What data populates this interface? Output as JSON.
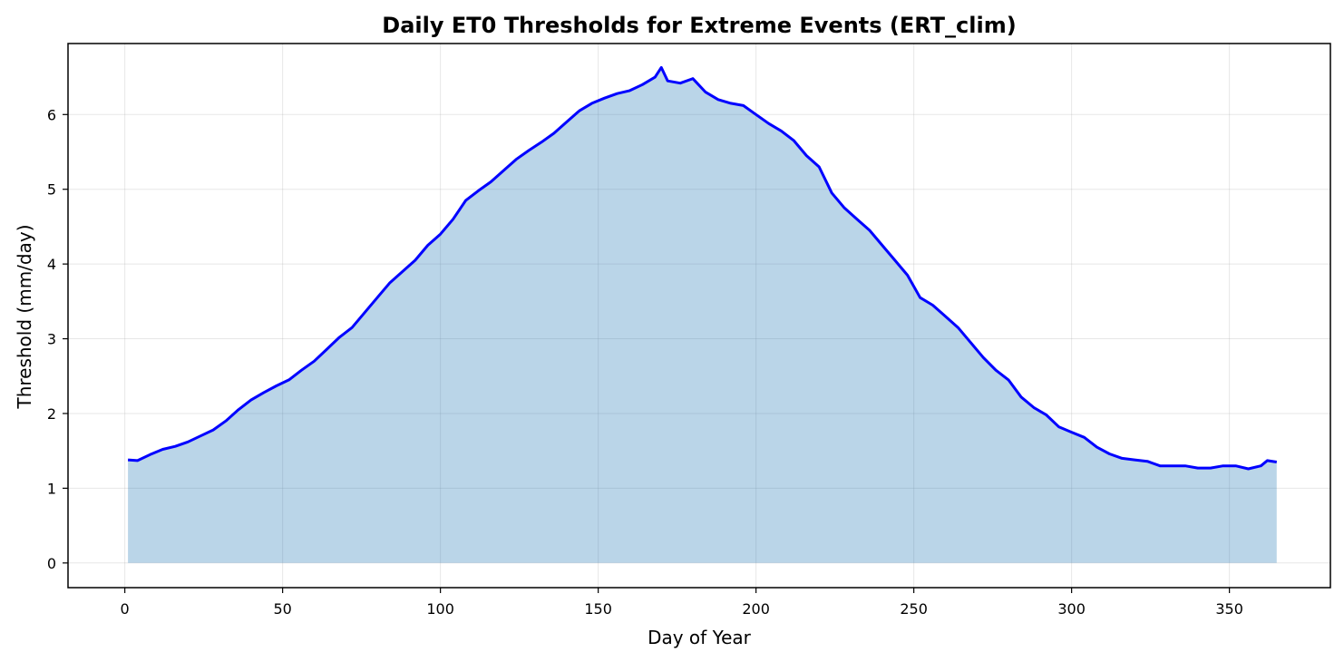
{
  "chart_data": {
    "type": "area",
    "title": "Daily ET0 Thresholds for Extreme Events (ERT_clim)",
    "xlabel": "Day of Year",
    "ylabel": "Threshold (mm/day)",
    "xlim": [
      -18,
      382
    ],
    "ylim": [
      -0.33,
      6.95
    ],
    "xticks": [
      0,
      50,
      100,
      150,
      200,
      250,
      300,
      350
    ],
    "yticks": [
      0,
      1,
      2,
      3,
      4,
      5,
      6
    ],
    "grid": true,
    "legend": "none",
    "colors": {
      "line": "#0000ff",
      "fill": "#1f77b4"
    },
    "series": [
      {
        "x": [
          1,
          4,
          8,
          12,
          16,
          20,
          24,
          28,
          32,
          36,
          40,
          44,
          48,
          52,
          56,
          60,
          64,
          68,
          72,
          76,
          80,
          84,
          88,
          92,
          96,
          100,
          104,
          108,
          112,
          116,
          120,
          124,
          128,
          132,
          136,
          140,
          144,
          148,
          152,
          156,
          160,
          164,
          168,
          170,
          172,
          176,
          180,
          184,
          188,
          192,
          196,
          200,
          204,
          208,
          212,
          216,
          220,
          224,
          228,
          232,
          236,
          240,
          244,
          248,
          252,
          256,
          260,
          264,
          268,
          272,
          276,
          280,
          284,
          288,
          292,
          296,
          300,
          304,
          308,
          312,
          316,
          320,
          324,
          328,
          332,
          336,
          340,
          344,
          348,
          352,
          356,
          360,
          362,
          365
        ],
        "y": [
          1.38,
          1.37,
          1.45,
          1.52,
          1.56,
          1.62,
          1.7,
          1.78,
          1.9,
          2.05,
          2.18,
          2.28,
          2.37,
          2.45,
          2.58,
          2.7,
          2.86,
          3.02,
          3.15,
          3.35,
          3.55,
          3.75,
          3.9,
          4.05,
          4.25,
          4.4,
          4.6,
          4.85,
          4.98,
          5.1,
          5.25,
          5.4,
          5.52,
          5.63,
          5.75,
          5.9,
          6.05,
          6.15,
          6.22,
          6.28,
          6.32,
          6.4,
          6.5,
          6.63,
          6.45,
          6.42,
          6.48,
          6.3,
          6.2,
          6.15,
          6.12,
          6.0,
          5.88,
          5.78,
          5.65,
          5.45,
          5.3,
          4.95,
          4.75,
          4.6,
          4.45,
          4.25,
          4.05,
          3.85,
          3.55,
          3.45,
          3.3,
          3.15,
          2.95,
          2.75,
          2.58,
          2.45,
          2.22,
          2.08,
          1.98,
          1.82,
          1.75,
          1.68,
          1.55,
          1.46,
          1.4,
          1.38,
          1.36,
          1.3,
          1.3,
          1.3,
          1.27,
          1.27,
          1.3,
          1.3,
          1.26,
          1.3,
          1.37,
          1.35
        ]
      }
    ]
  }
}
